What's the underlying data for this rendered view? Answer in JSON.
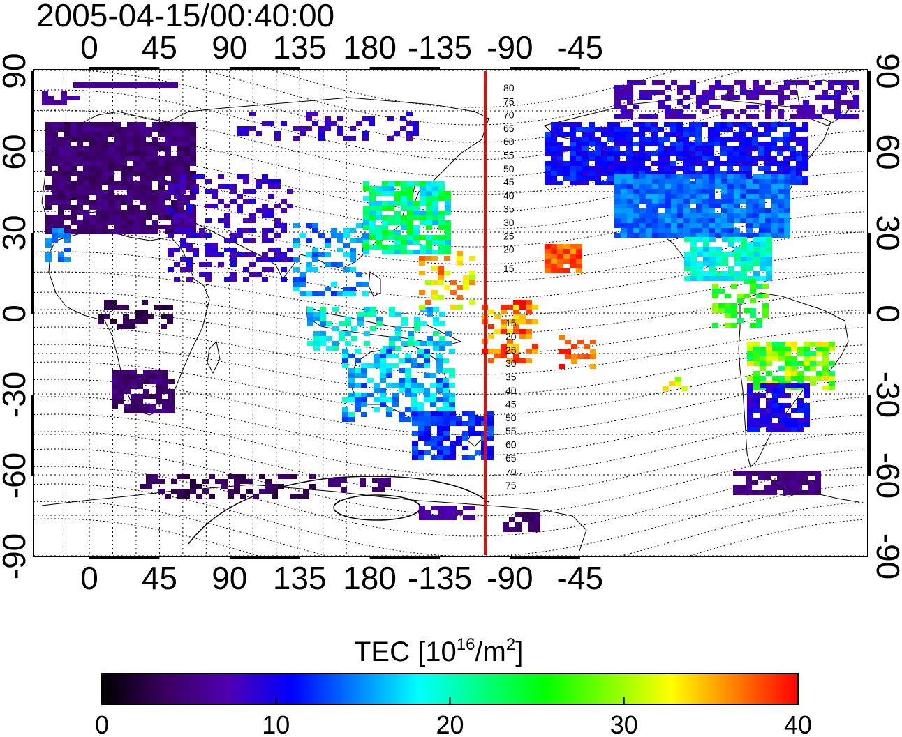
{
  "title": "2005-04-15/00:40:00",
  "map": {
    "lon_ticks": [
      "0",
      "45",
      "90",
      "135",
      "180",
      "-135",
      "-90",
      "-45"
    ],
    "lat_ticks": [
      "90",
      "60",
      "30",
      "0",
      "-30",
      "-60",
      "-90"
    ],
    "magnetic_latitude_labels": {
      "north": [
        "80",
        "75",
        "70",
        "65",
        "60",
        "55",
        "50",
        "45",
        "40",
        "35",
        "30",
        "25",
        "20",
        "15"
      ],
      "south": [
        "15",
        "20",
        "25",
        "30",
        "35",
        "40",
        "45",
        "50",
        "55",
        "60",
        "65",
        "70",
        "75"
      ]
    },
    "marker_line_color": "#ff0000"
  },
  "colorbar": {
    "label_prefix": "TEC  [10",
    "label_exp1": "16",
    "label_mid": "/m",
    "label_exp2": "2",
    "label_suffix": "]",
    "min": 0,
    "max": 40,
    "ticks": [
      "0",
      "10",
      "20",
      "30",
      "40"
    ],
    "colors": [
      "#000000",
      "#3a0060",
      "#5000b0",
      "#0000ff",
      "#0080ff",
      "#00ffff",
      "#00ff80",
      "#00ff00",
      "#80ff00",
      "#ffff00",
      "#ff8000",
      "#ff0000"
    ]
  }
}
